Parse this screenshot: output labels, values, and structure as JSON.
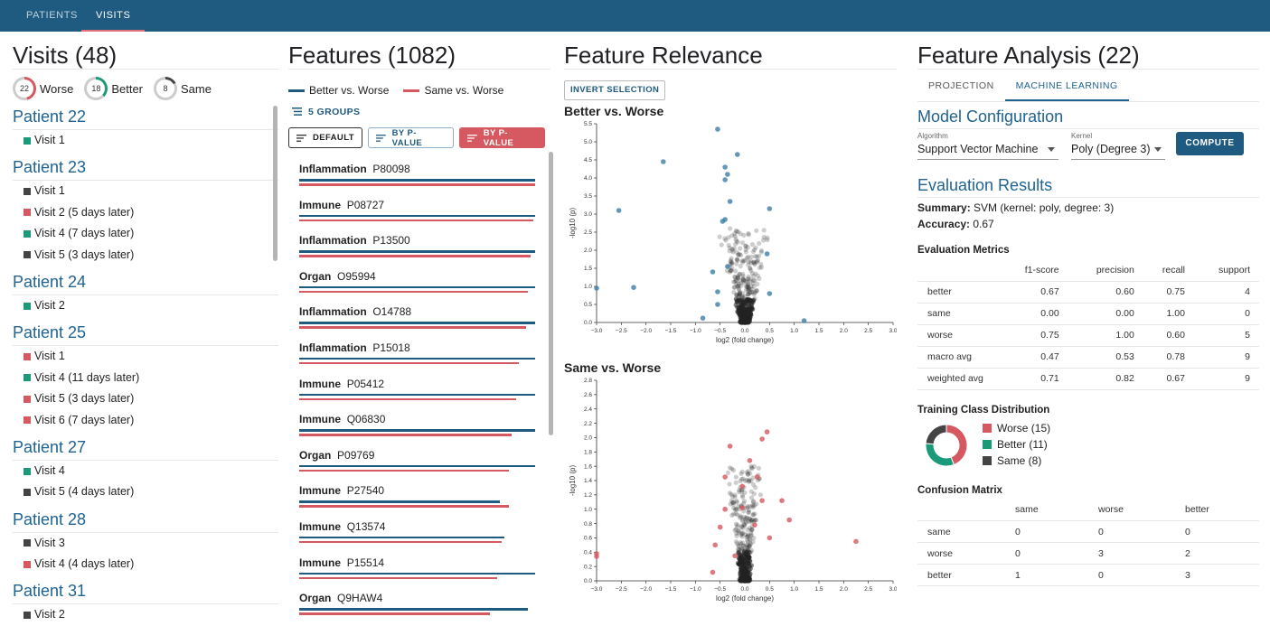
{
  "nav": {
    "tabs": [
      {
        "label": "PATIENTS"
      },
      {
        "label": "VISITS"
      }
    ]
  },
  "colors": {
    "worse": "#d65860",
    "better": "#1a9a78",
    "same": "#444444",
    "accent": "#1f5a80",
    "title_blue": "#1f6392"
  },
  "visits": {
    "title": "Visits (48)",
    "status": [
      {
        "count": "22",
        "label": "Worse",
        "icon": "worse-ring-icon",
        "color": "#d65860",
        "fraction": 0.46
      },
      {
        "count": "18",
        "label": "Better",
        "icon": "better-ring-icon",
        "color": "#1a9a78",
        "fraction": 0.375
      },
      {
        "count": "8",
        "label": "Same",
        "icon": "same-ring-icon",
        "color": "#444444",
        "fraction": 0.17
      }
    ],
    "patients": [
      {
        "name": "Patient 22",
        "visits": [
          {
            "label": "Visit 1",
            "status": "better"
          }
        ]
      },
      {
        "name": "Patient 23",
        "visits": [
          {
            "label": "Visit 1",
            "status": "same"
          },
          {
            "label": "Visit 2 (5 days later)",
            "status": "worse"
          },
          {
            "label": "Visit 4 (7 days later)",
            "status": "better"
          },
          {
            "label": "Visit 5 (3 days later)",
            "status": "same"
          }
        ]
      },
      {
        "name": "Patient 24",
        "visits": [
          {
            "label": "Visit 2",
            "status": "better"
          }
        ]
      },
      {
        "name": "Patient 25",
        "visits": [
          {
            "label": "Visit 1",
            "status": "worse"
          },
          {
            "label": "Visit 4 (11 days later)",
            "status": "better"
          },
          {
            "label": "Visit 5 (3 days later)",
            "status": "worse"
          },
          {
            "label": "Visit 6 (7 days later)",
            "status": "worse"
          }
        ]
      },
      {
        "name": "Patient 27",
        "visits": [
          {
            "label": "Visit 4",
            "status": "better"
          },
          {
            "label": "Visit 5 (4 days later)",
            "status": "same"
          }
        ]
      },
      {
        "name": "Patient 28",
        "visits": [
          {
            "label": "Visit 3",
            "status": "same"
          },
          {
            "label": "Visit 4 (4 days later)",
            "status": "worse"
          }
        ]
      },
      {
        "name": "Patient 31",
        "visits": [
          {
            "label": "Visit 2",
            "status": "same"
          }
        ]
      }
    ]
  },
  "features": {
    "title": "Features (1082)",
    "legend": [
      {
        "label": "Better vs. Worse",
        "color": "#1f5a80"
      },
      {
        "label": "Same vs. Worse",
        "color": "#d65860"
      }
    ],
    "groups_label": "5 GROUPS",
    "sort_buttons": [
      {
        "label": "DEFAULT",
        "style": "outline-dark"
      },
      {
        "label": "BY P-VALUE",
        "style": "outline-blue"
      },
      {
        "label": "BY P-VALUE",
        "style": "filled-red"
      }
    ],
    "items": [
      {
        "group": "Inflammation",
        "id": "P80098",
        "better": 0.99,
        "same": 0.99
      },
      {
        "group": "Immune",
        "id": "P08727",
        "better": 0.99,
        "same": 0.98
      },
      {
        "group": "Inflammation",
        "id": "P13500",
        "better": 0.99,
        "same": 0.97
      },
      {
        "group": "Organ",
        "id": "O95994",
        "better": 0.99,
        "same": 0.96
      },
      {
        "group": "Inflammation",
        "id": "O14788",
        "better": 0.99,
        "same": 0.95
      },
      {
        "group": "Inflammation",
        "id": "P15018",
        "better": 0.99,
        "same": 0.92
      },
      {
        "group": "Immune",
        "id": "P05412",
        "better": 0.99,
        "same": 0.91
      },
      {
        "group": "Immune",
        "id": "Q06830",
        "better": 0.99,
        "same": 0.89
      },
      {
        "group": "Organ",
        "id": "P09769",
        "better": 0.99,
        "same": 0.88
      },
      {
        "group": "Immune",
        "id": "P27540",
        "better": 0.84,
        "same": 0.88
      },
      {
        "group": "Immune",
        "id": "Q13574",
        "better": 0.86,
        "same": 0.85
      },
      {
        "group": "Immune",
        "id": "P15514",
        "better": 0.99,
        "same": 0.83
      },
      {
        "group": "Organ",
        "id": "Q9HAW4",
        "better": 0.96,
        "same": 0.8
      }
    ]
  },
  "relevance": {
    "title": "Feature Relevance",
    "invert_label": "INVERT SELECTION",
    "plots": [
      {
        "title": "Better vs. Worse",
        "xlabel": "log2 (fold change)",
        "ylabel": "-log10 (p)"
      },
      {
        "title": "Same vs. Worse",
        "xlabel": "log2 (fold change)",
        "ylabel": "-log10 (p)"
      }
    ]
  },
  "chart_data": [
    {
      "type": "scatter",
      "title": "Better vs. Worse",
      "xlabel": "log2 (fold change)",
      "ylabel": "-log10 (p)",
      "xlim": [
        -3.0,
        3.0
      ],
      "ylim": [
        0,
        5.5
      ],
      "xticks": [
        "−3.0",
        "−2.5",
        "−2.0",
        "−1.5",
        "−1.0",
        "−0.5",
        "0.0",
        "0.5",
        "1.0",
        "1.5",
        "2.0",
        "2.5",
        "3.0"
      ],
      "yticks": [
        "0.0",
        "0.5",
        "1.0",
        "1.5",
        "2.0",
        "2.5",
        "3.0",
        "3.5",
        "4.0",
        "4.5",
        "5.0",
        "5.5"
      ],
      "highlight_color": "#3d7ea6",
      "highlighted": [
        {
          "x": -0.55,
          "y": 5.35
        },
        {
          "x": -0.15,
          "y": 4.65
        },
        {
          "x": -1.65,
          "y": 4.45
        },
        {
          "x": -0.4,
          "y": 4.3
        },
        {
          "x": -0.35,
          "y": 4.1
        },
        {
          "x": -0.4,
          "y": 3.95
        },
        {
          "x": -0.3,
          "y": 3.35
        },
        {
          "x": -2.55,
          "y": 3.1
        },
        {
          "x": 0.5,
          "y": 3.15
        },
        {
          "x": -0.4,
          "y": 2.85
        },
        {
          "x": -0.45,
          "y": 2.8
        },
        {
          "x": -0.65,
          "y": 1.4
        },
        {
          "x": -0.35,
          "y": 1.55
        },
        {
          "x": 0.45,
          "y": 1.9
        },
        {
          "x": -3.0,
          "y": 0.95
        },
        {
          "x": -2.25,
          "y": 0.97
        },
        {
          "x": -0.55,
          "y": 0.85
        },
        {
          "x": 0.5,
          "y": 0.8
        },
        {
          "x": -0.55,
          "y": 0.5
        },
        {
          "x": -0.85,
          "y": 0.12
        },
        {
          "x": 1.2,
          "y": 0.05
        }
      ]
    },
    {
      "type": "scatter",
      "title": "Same vs. Worse",
      "xlabel": "log2 (fold change)",
      "ylabel": "-log10 (p)",
      "xlim": [
        -3.0,
        3.0
      ],
      "ylim": [
        0,
        2.8
      ],
      "xticks": [
        "−3.0",
        "−2.5",
        "−2.0",
        "−1.5",
        "−1.0",
        "−0.5",
        "0.0",
        "0.5",
        "1.0",
        "1.5",
        "2.0",
        "2.5",
        "3.0"
      ],
      "yticks": [
        "0.0",
        "0.2",
        "0.4",
        "0.6",
        "0.8",
        "1.0",
        "1.2",
        "1.4",
        "1.6",
        "1.8",
        "2.0",
        "2.2",
        "2.4",
        "2.6",
        "2.8"
      ],
      "highlight_color": "#d65860",
      "highlighted": [
        {
          "x": 0.45,
          "y": 2.08
        },
        {
          "x": 0.35,
          "y": 1.98
        },
        {
          "x": -0.3,
          "y": 1.88
        },
        {
          "x": 0.1,
          "y": 1.68
        },
        {
          "x": -0.4,
          "y": 1.45
        },
        {
          "x": 0.25,
          "y": 1.45
        },
        {
          "x": -0.05,
          "y": 1.32
        },
        {
          "x": 0.35,
          "y": 1.12
        },
        {
          "x": 0.75,
          "y": 1.12
        },
        {
          "x": -0.4,
          "y": 1.0
        },
        {
          "x": -0.05,
          "y": 1.02
        },
        {
          "x": 0.9,
          "y": 0.85
        },
        {
          "x": 0.2,
          "y": 0.78
        },
        {
          "x": -0.5,
          "y": 0.75
        },
        {
          "x": 0.5,
          "y": 0.6
        },
        {
          "x": -0.6,
          "y": 0.5
        },
        {
          "x": -3.0,
          "y": 0.38
        },
        {
          "x": -3.0,
          "y": 0.34
        },
        {
          "x": 2.25,
          "y": 0.55
        },
        {
          "x": -0.65,
          "y": 0.12
        },
        {
          "x": -0.2,
          "y": 0.35
        }
      ]
    }
  ],
  "analysis": {
    "title": "Feature Analysis (22)",
    "tabs": [
      {
        "label": "PROJECTION"
      },
      {
        "label": "MACHINE LEARNING"
      }
    ],
    "model": {
      "heading": "Model Configuration",
      "algorithm_label": "Algorithm",
      "algorithm_value": "Support Vector Machine",
      "kernel_label": "Kernel",
      "kernel_value": "Poly (Degree 3)",
      "compute_label": "COMPUTE"
    },
    "results": {
      "heading": "Evaluation Results",
      "summary_label": "Summary:",
      "summary_value": " SVM (kernel: poly, degree: 3)",
      "accuracy_label": "Accuracy:",
      "accuracy_value": " 0.67"
    },
    "metrics": {
      "heading": "Evaluation Metrics",
      "columns": [
        "",
        "f1-score",
        "precision",
        "recall",
        "support"
      ],
      "rows": [
        [
          "better",
          "0.67",
          "0.60",
          "0.75",
          "4"
        ],
        [
          "same",
          "0.00",
          "0.00",
          "1.00",
          "0"
        ],
        [
          "worse",
          "0.75",
          "1.00",
          "0.60",
          "5"
        ],
        [
          "macro avg",
          "0.47",
          "0.53",
          "0.78",
          "9"
        ],
        [
          "weighted avg",
          "0.71",
          "0.82",
          "0.67",
          "9"
        ]
      ]
    },
    "distribution": {
      "heading": "Training Class Distribution",
      "items": [
        {
          "label": "Worse (15)",
          "value": 15,
          "color": "#d65860"
        },
        {
          "label": "Better (11)",
          "value": 11,
          "color": "#1a9a78"
        },
        {
          "label": "Same (8)",
          "value": 8,
          "color": "#444444"
        }
      ]
    },
    "confusion": {
      "heading": "Confusion Matrix",
      "columns": [
        "",
        "same",
        "worse",
        "better"
      ],
      "rows": [
        [
          "same",
          "0",
          "0",
          "0"
        ],
        [
          "worse",
          "0",
          "3",
          "2"
        ],
        [
          "better",
          "1",
          "0",
          "3"
        ]
      ]
    }
  }
}
